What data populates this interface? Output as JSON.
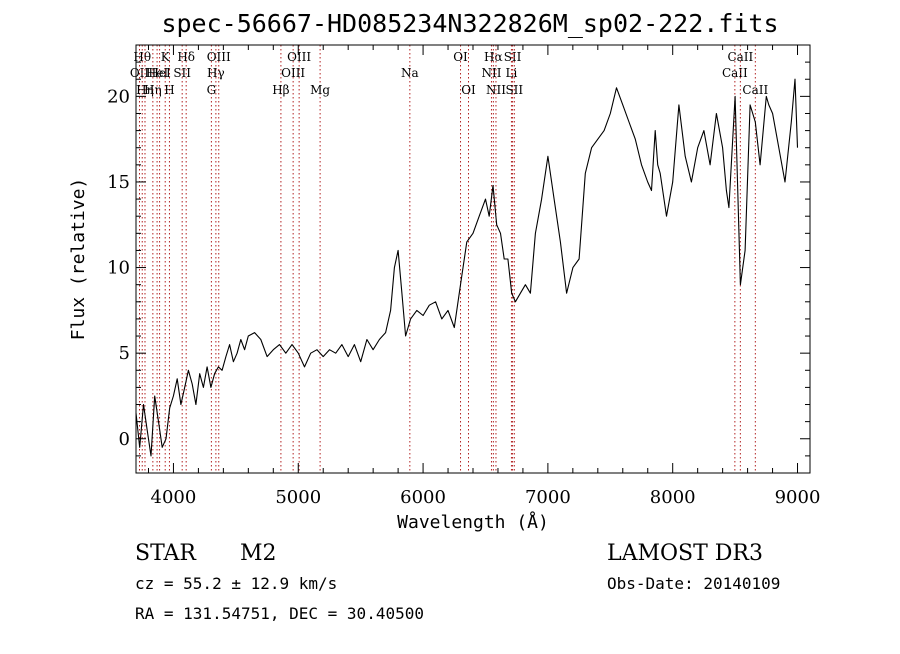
{
  "chart_data": {
    "type": "line",
    "title": "spec-56667-HD085234N322826M_sp02-222.fits",
    "xlabel": "Wavelength (Å)",
    "ylabel": "Flux (relative)",
    "xlim": [
      3700,
      9100
    ],
    "ylim": [
      -2,
      23
    ],
    "xticks": [
      4000,
      5000,
      6000,
      7000,
      8000,
      9000
    ],
    "yticks": [
      0,
      5,
      10,
      15,
      20
    ],
    "grid": false,
    "line_color": "#000000",
    "marker_color": "#b22222",
    "series": [
      {
        "x": [
          3700,
          3730,
          3760,
          3790,
          3820,
          3850,
          3880,
          3910,
          3940,
          3970,
          4000,
          4030,
          4060,
          4090,
          4120,
          4150,
          4180,
          4210,
          4240,
          4270,
          4300,
          4330,
          4360,
          4390,
          4420,
          4450,
          4480,
          4510,
          4540,
          4570,
          4600,
          4650,
          4700,
          4750,
          4800,
          4850,
          4900,
          4950,
          5000,
          5050,
          5100,
          5150,
          5200,
          5250,
          5300,
          5350,
          5400,
          5450,
          5500,
          5550,
          5600,
          5650,
          5700,
          5740,
          5770,
          5800,
          5830,
          5860,
          5900,
          5950,
          6000,
          6050,
          6100,
          6150,
          6200,
          6250,
          6300,
          6350,
          6400,
          6450,
          6500,
          6530,
          6560,
          6590,
          6620,
          6650,
          6680,
          6710,
          6740,
          6780,
          6820,
          6860,
          6900,
          6950,
          7000,
          7050,
          7100,
          7150,
          7200,
          7250,
          7300,
          7350,
          7400,
          7450,
          7500,
          7550,
          7600,
          7650,
          7700,
          7750,
          7800,
          7830,
          7860,
          7880,
          7900,
          7950,
          8000,
          8050,
          8100,
          8150,
          8200,
          8250,
          8300,
          8350,
          8400,
          8430,
          8450,
          8500,
          8542,
          8580,
          8620,
          8662,
          8700,
          8750,
          8770,
          8800,
          8850,
          8900,
          8950,
          8980,
          9000
        ],
        "y": [
          1.5,
          -0.5,
          2.0,
          0.5,
          -1.0,
          2.5,
          1.0,
          -0.5,
          0.0,
          1.8,
          2.5,
          3.5,
          2.0,
          3.0,
          4.0,
          3.2,
          2.0,
          3.8,
          3.0,
          4.2,
          3.0,
          3.8,
          4.2,
          4.0,
          4.8,
          5.5,
          4.5,
          5.0,
          5.8,
          5.2,
          6.0,
          6.2,
          5.8,
          4.8,
          5.2,
          5.5,
          5.0,
          5.5,
          5.0,
          4.2,
          5.0,
          5.2,
          4.8,
          5.2,
          5.0,
          5.5,
          4.8,
          5.5,
          4.5,
          5.8,
          5.2,
          5.8,
          6.2,
          7.5,
          10.0,
          11.0,
          8.5,
          6.0,
          7.0,
          7.5,
          7.2,
          7.8,
          8.0,
          7.0,
          7.5,
          6.5,
          9.0,
          11.5,
          12.0,
          13.0,
          14.0,
          13.0,
          14.8,
          12.5,
          12.0,
          10.5,
          10.5,
          8.5,
          8.0,
          8.5,
          9.0,
          8.5,
          12.0,
          14.0,
          16.5,
          14.0,
          11.5,
          8.5,
          10.0,
          10.5,
          15.5,
          17.0,
          17.5,
          18.0,
          19.0,
          20.5,
          19.5,
          18.5,
          17.5,
          16.0,
          15.0,
          14.5,
          18.0,
          16.0,
          15.5,
          13.0,
          15.0,
          19.5,
          16.5,
          15.0,
          17.0,
          18.0,
          16.0,
          19.0,
          17.0,
          14.5,
          13.5,
          20.0,
          9.0,
          11.0,
          19.5,
          18.5,
          16.0,
          20.0,
          19.5,
          19.0,
          17.0,
          15.0,
          18.5,
          21.0,
          17.0
        ]
      }
    ],
    "line_markers": [
      {
        "x": 3728,
        "label": "OII",
        "row": 1
      },
      {
        "x": 3750,
        "label": "Hθ",
        "row": 0
      },
      {
        "x": 3772,
        "label": "Hη",
        "row": 2
      },
      {
        "x": 3835,
        "label": "Hη",
        "row": 2
      },
      {
        "x": 3869,
        "label": "HeI",
        "row": 1
      },
      {
        "x": 3889,
        "label": "HeI",
        "row": 1
      },
      {
        "x": 3934,
        "label": "K",
        "row": 0
      },
      {
        "x": 3968,
        "label": "H",
        "row": 2
      },
      {
        "x": 4070,
        "label": "SII",
        "row": 1
      },
      {
        "x": 4102,
        "label": "Hδ",
        "row": 0
      },
      {
        "x": 4304,
        "label": "G",
        "row": 2
      },
      {
        "x": 4340,
        "label": "Hγ",
        "row": 1
      },
      {
        "x": 4363,
        "label": "OIII",
        "row": 0
      },
      {
        "x": 4861,
        "label": "Hβ",
        "row": 2
      },
      {
        "x": 4959,
        "label": "OIII",
        "row": 1
      },
      {
        "x": 5007,
        "label": "OIII",
        "row": 0
      },
      {
        "x": 5175,
        "label": "Mg",
        "row": 2
      },
      {
        "x": 5894,
        "label": "Na",
        "row": 1
      },
      {
        "x": 6300,
        "label": "OI",
        "row": 0
      },
      {
        "x": 6364,
        "label": "OI",
        "row": 2
      },
      {
        "x": 6548,
        "label": "NII",
        "row": 1
      },
      {
        "x": 6563,
        "label": "Hα",
        "row": 0
      },
      {
        "x": 6584,
        "label": "NII",
        "row": 2
      },
      {
        "x": 6708,
        "label": "Li",
        "row": 1
      },
      {
        "x": 6717,
        "label": "SII",
        "row": 0
      },
      {
        "x": 6731,
        "label": "SII",
        "row": 2
      },
      {
        "x": 8498,
        "label": "CaII",
        "row": 1
      },
      {
        "x": 8542,
        "label": "CaII",
        "row": 0
      },
      {
        "x": 8662,
        "label": "CaII",
        "row": 2
      }
    ]
  },
  "info": {
    "class": "STAR",
    "subclass": "M2",
    "survey": "LAMOST DR3",
    "cz": "cz = 55.2 ± 12.9 km/s",
    "obs_date": "Obs-Date: 20140109",
    "radec": "RA = 131.54751, DEC =  30.40500"
  }
}
